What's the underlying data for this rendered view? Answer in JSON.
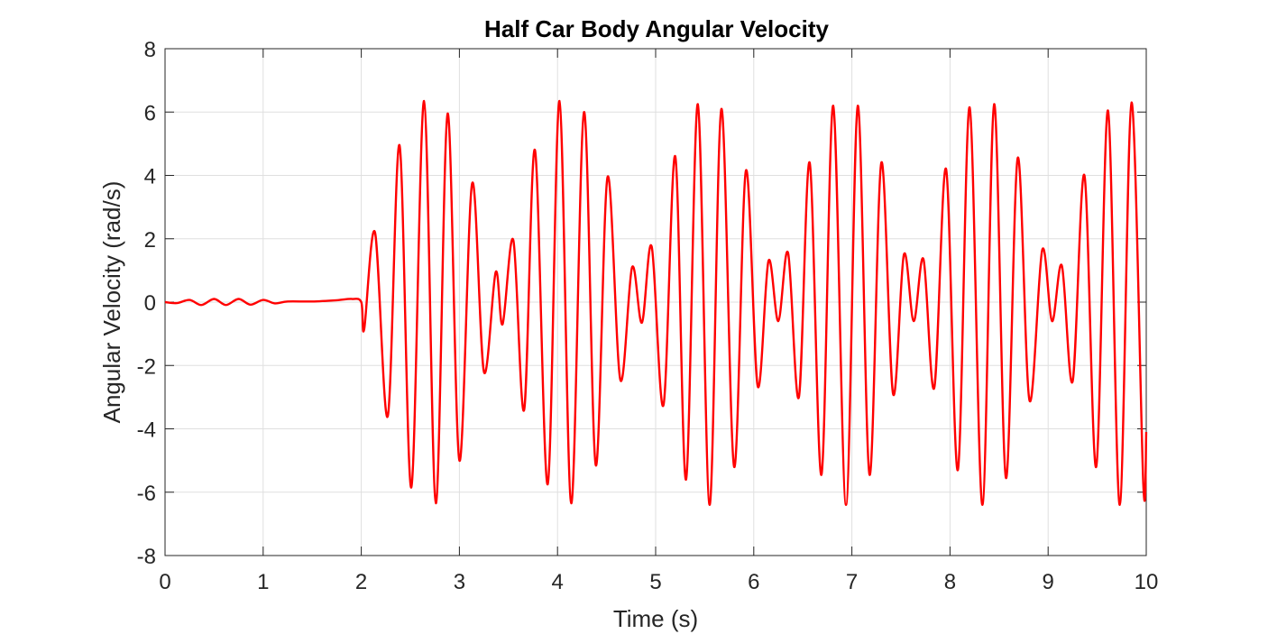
{
  "chart_data": {
    "type": "line",
    "title": "Half Car Body Angular Velocity",
    "xlabel": "Time (s)",
    "ylabel": "Angular Velocity (rad/s)",
    "xlim": [
      0,
      10
    ],
    "ylim": [
      -8,
      8
    ],
    "xticks": [
      0,
      1,
      2,
      3,
      4,
      5,
      6,
      7,
      8,
      9,
      10
    ],
    "yticks": [
      -8,
      -6,
      -4,
      -2,
      0,
      2,
      4,
      6,
      8
    ],
    "grid": true,
    "legend": "none",
    "series": [
      {
        "color": "#ff0000",
        "x": [
          0,
          0.12,
          0.25,
          0.37,
          0.5,
          0.62,
          0.75,
          0.87,
          1.0,
          1.12,
          1.25,
          1.5,
          1.75,
          1.9,
          2.0,
          2.03,
          2.14,
          2.27,
          2.39,
          2.51,
          2.64,
          2.76,
          2.88,
          3.0,
          3.13,
          3.25,
          3.37,
          3.44,
          3.55,
          3.66,
          3.77,
          3.9,
          4.02,
          4.14,
          4.27,
          4.39,
          4.51,
          4.64,
          4.76,
          4.86,
          4.96,
          5.08,
          5.2,
          5.31,
          5.43,
          5.55,
          5.67,
          5.8,
          5.92,
          6.04,
          6.15,
          6.25,
          6.35,
          6.46,
          6.57,
          6.69,
          6.81,
          6.94,
          7.06,
          7.18,
          7.3,
          7.42,
          7.53,
          7.63,
          7.73,
          7.84,
          7.96,
          8.08,
          8.2,
          8.33,
          8.45,
          8.57,
          8.69,
          8.81,
          8.94,
          9.04,
          9.14,
          9.25,
          9.37,
          9.49,
          9.61,
          9.73,
          9.85,
          9.97,
          10.0
        ],
        "y": [
          0.0,
          -0.03,
          0.07,
          -0.09,
          0.1,
          -0.09,
          0.1,
          -0.08,
          0.07,
          -0.04,
          0.02,
          0.02,
          0.06,
          0.1,
          0.0,
          -0.85,
          2.2,
          -3.6,
          4.95,
          -5.85,
          6.35,
          -6.35,
          5.95,
          -5.0,
          3.75,
          -2.2,
          0.95,
          -0.7,
          1.95,
          -3.4,
          4.8,
          -5.75,
          6.35,
          -6.35,
          6.0,
          -5.15,
          3.95,
          -2.45,
          1.1,
          -0.65,
          1.75,
          -3.25,
          4.6,
          -5.6,
          6.25,
          -6.4,
          6.1,
          -5.2,
          4.15,
          -2.65,
          1.3,
          -0.6,
          1.55,
          -3.0,
          4.4,
          -5.45,
          6.2,
          -6.4,
          6.2,
          -5.45,
          4.4,
          -2.9,
          1.5,
          -0.6,
          1.35,
          -2.7,
          4.2,
          -5.3,
          6.15,
          -6.4,
          6.25,
          -5.55,
          4.55,
          -3.1,
          1.65,
          -0.6,
          1.15,
          -2.5,
          4.0,
          -5.2,
          6.05,
          -6.4,
          6.3,
          -5.75,
          -4.1
        ]
      }
    ]
  }
}
